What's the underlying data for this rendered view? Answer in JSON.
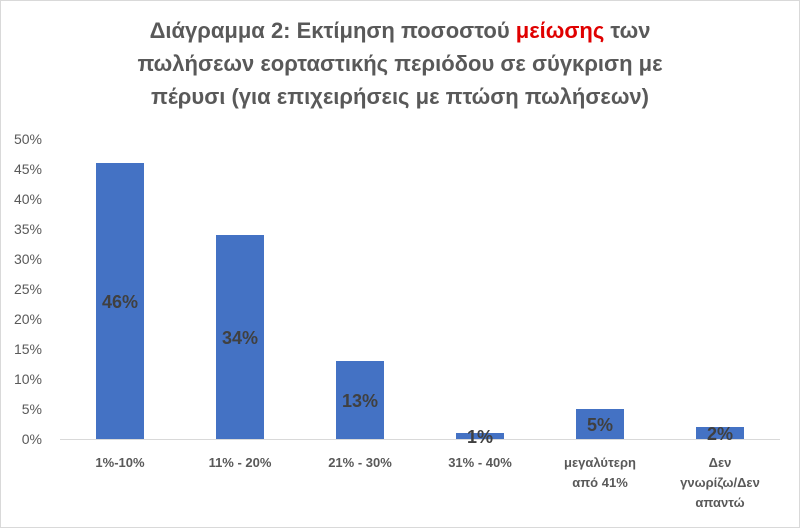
{
  "chart_data": {
    "type": "bar",
    "title": {
      "line1_pre": "Διάγραμμα 2: Εκτίμηση ποσοστού ",
      "line1_highlight": "μείωσης",
      "line1_post": " των",
      "line2": "πωλήσεων εορταστικής περιόδου σε σύγκριση με",
      "line3": "πέρυσι (για επιχειρήσεις με πτώση πωλήσεων)"
    },
    "highlight_color": "#e00000",
    "bar_color": "#4472c4",
    "categories": [
      [
        "1%-10%"
      ],
      [
        "11% - 20%"
      ],
      [
        "21% - 30%"
      ],
      [
        "31% - 40%"
      ],
      [
        "μεγαλύτερη",
        "από 41%"
      ],
      [
        "Δεν",
        "γνωρίζω/Δεν",
        "απαντώ"
      ]
    ],
    "values": [
      46,
      34,
      13,
      1,
      5,
      2
    ],
    "data_labels": [
      "46%",
      "34%",
      "13%",
      "1%",
      "5%",
      "2%"
    ],
    "y_ticks": [
      "0%",
      "5%",
      "10%",
      "15%",
      "20%",
      "25%",
      "30%",
      "35%",
      "40%",
      "45%",
      "50%"
    ],
    "ylim": [
      0,
      50
    ],
    "grid": false,
    "legend": "none"
  }
}
